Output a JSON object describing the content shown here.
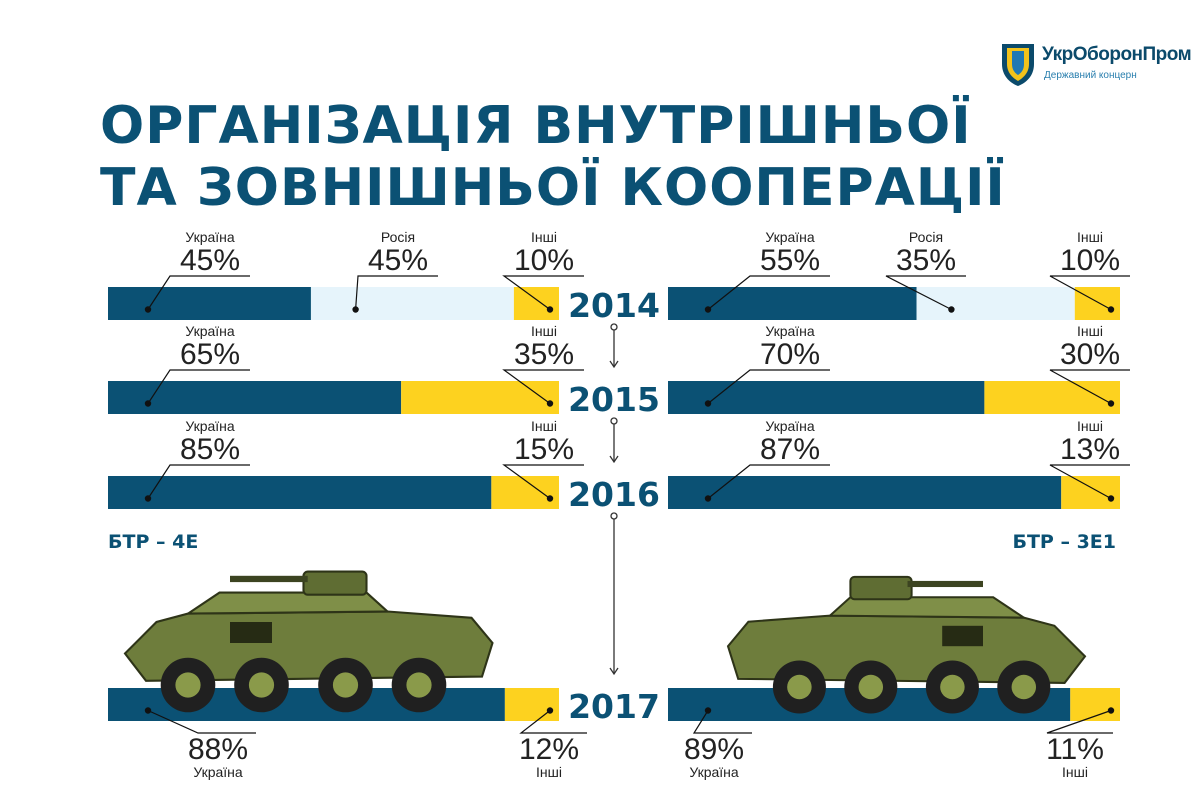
{
  "logo": {
    "name": "УкрОборонПром",
    "subtitle": "Державний концерн"
  },
  "title": {
    "line1": "ОРГАНІЗАЦІЯ ВНУТРІШНЬОЇ",
    "line2": "ТА ЗОВНІШНЬОЇ КООПЕРАЦІЇ"
  },
  "colors": {
    "ukraine": "#0b5174",
    "russia": "#e6f4fb",
    "other": "#fdd21f",
    "text_blue": "#0b5174"
  },
  "chart_data": {
    "type": "bar",
    "stacked": true,
    "orientation": "horizontal",
    "unit": "%",
    "years": [
      "2014",
      "2015",
      "2016",
      "2017"
    ],
    "panels": [
      {
        "vehicle": "БТР – 4Е",
        "rows": [
          {
            "year": "2014",
            "segments": [
              {
                "name": "Україна",
                "value": 45
              },
              {
                "name": "Росія",
                "value": 45
              },
              {
                "name": "Інші",
                "value": 10
              }
            ]
          },
          {
            "year": "2015",
            "segments": [
              {
                "name": "Україна",
                "value": 65
              },
              {
                "name": "Інші",
                "value": 35
              }
            ]
          },
          {
            "year": "2016",
            "segments": [
              {
                "name": "Україна",
                "value": 85
              },
              {
                "name": "Інші",
                "value": 15
              }
            ]
          },
          {
            "year": "2017",
            "segments": [
              {
                "name": "Україна",
                "value": 88
              },
              {
                "name": "Інші",
                "value": 12
              }
            ]
          }
        ]
      },
      {
        "vehicle": "БТР – 3Е1",
        "rows": [
          {
            "year": "2014",
            "segments": [
              {
                "name": "Україна",
                "value": 55
              },
              {
                "name": "Росія",
                "value": 35
              },
              {
                "name": "Інші",
                "value": 10
              }
            ]
          },
          {
            "year": "2015",
            "segments": [
              {
                "name": "Україна",
                "value": 70
              },
              {
                "name": "Інші",
                "value": 30
              }
            ]
          },
          {
            "year": "2016",
            "segments": [
              {
                "name": "Україна",
                "value": 87
              },
              {
                "name": "Інші",
                "value": 13
              }
            ]
          },
          {
            "year": "2017",
            "segments": [
              {
                "name": "Україна",
                "value": 89
              },
              {
                "name": "Інші",
                "value": 11
              }
            ]
          }
        ]
      }
    ]
  }
}
